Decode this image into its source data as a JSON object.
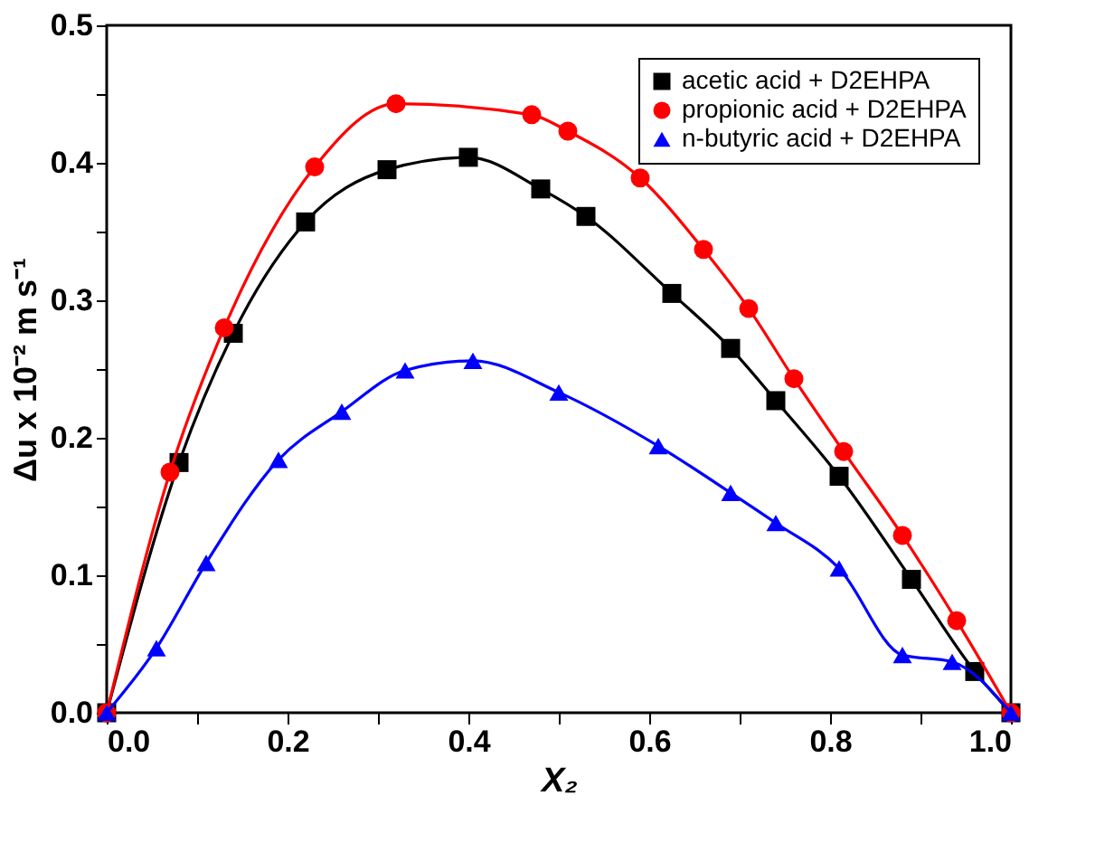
{
  "chart_data": {
    "type": "line",
    "xlabel": "X₂",
    "ylabel": "Δu x 10⁻² m s⁻¹",
    "xlim": [
      0,
      1
    ],
    "ylim": [
      0,
      0.5
    ],
    "xticks": [
      {
        "value": 0,
        "label": "0.0"
      },
      {
        "value": 0.1,
        "label": null
      },
      {
        "value": 0.2,
        "label": "0.2"
      },
      {
        "value": 0.3,
        "label": null
      },
      {
        "value": 0.4,
        "label": "0.4"
      },
      {
        "value": 0.5,
        "label": null
      },
      {
        "value": 0.6,
        "label": "0.6"
      },
      {
        "value": 0.7,
        "label": null
      },
      {
        "value": 0.8,
        "label": "0.8"
      },
      {
        "value": 0.9,
        "label": null
      },
      {
        "value": 1,
        "label": "1.0"
      }
    ],
    "yticks": [
      {
        "value": 0,
        "label": "0.0"
      },
      {
        "value": 0.05,
        "label": null
      },
      {
        "value": 0.1,
        "label": "0.1"
      },
      {
        "value": 0.15,
        "label": null
      },
      {
        "value": 0.2,
        "label": "0.2"
      },
      {
        "value": 0.25,
        "label": null
      },
      {
        "value": 0.3,
        "label": "0.3"
      },
      {
        "value": 0.35,
        "label": null
      },
      {
        "value": 0.4,
        "label": "0.4"
      },
      {
        "value": 0.45,
        "label": null
      },
      {
        "value": 0.5,
        "label": "0.5"
      }
    ],
    "grid": false,
    "legend": "top right",
    "line_style": "solid",
    "series": [
      {
        "name": "acetic acid + D2EHPA",
        "color": "#000000",
        "marker": "square",
        "x": [
          0,
          0.08,
          0.14,
          0.22,
          0.31,
          0.4,
          0.48,
          0.53,
          0.625,
          0.69,
          0.74,
          0.81,
          0.89,
          0.96,
          1
        ],
        "values": [
          0,
          0.182,
          0.276,
          0.357,
          0.395,
          0.404,
          0.381,
          0.361,
          0.305,
          0.265,
          0.227,
          0.172,
          0.097,
          0.03,
          0
        ]
      },
      {
        "name": "propionic acid + D2EHPA",
        "color": "#ff0000",
        "marker": "circle",
        "x": [
          0,
          0.07,
          0.13,
          0.23,
          0.32,
          0.47,
          0.51,
          0.59,
          0.66,
          0.71,
          0.76,
          0.815,
          0.88,
          0.94,
          1
        ],
        "values": [
          0,
          0.175,
          0.28,
          0.397,
          0.443,
          0.435,
          0.423,
          0.389,
          0.337,
          0.294,
          0.243,
          0.19,
          0.129,
          0.067,
          0
        ]
      },
      {
        "name": "n-butyric acid + D2EHPA",
        "color": "#0000ff",
        "marker": "triangle",
        "x": [
          0,
          0.055,
          0.11,
          0.19,
          0.26,
          0.33,
          0.405,
          0.5,
          0.61,
          0.69,
          0.74,
          0.81,
          0.88,
          0.935,
          1
        ],
        "values": [
          0,
          0.047,
          0.109,
          0.184,
          0.219,
          0.249,
          0.256,
          0.233,
          0.194,
          0.16,
          0.138,
          0.105,
          0.042,
          0.037,
          0
        ]
      }
    ]
  }
}
